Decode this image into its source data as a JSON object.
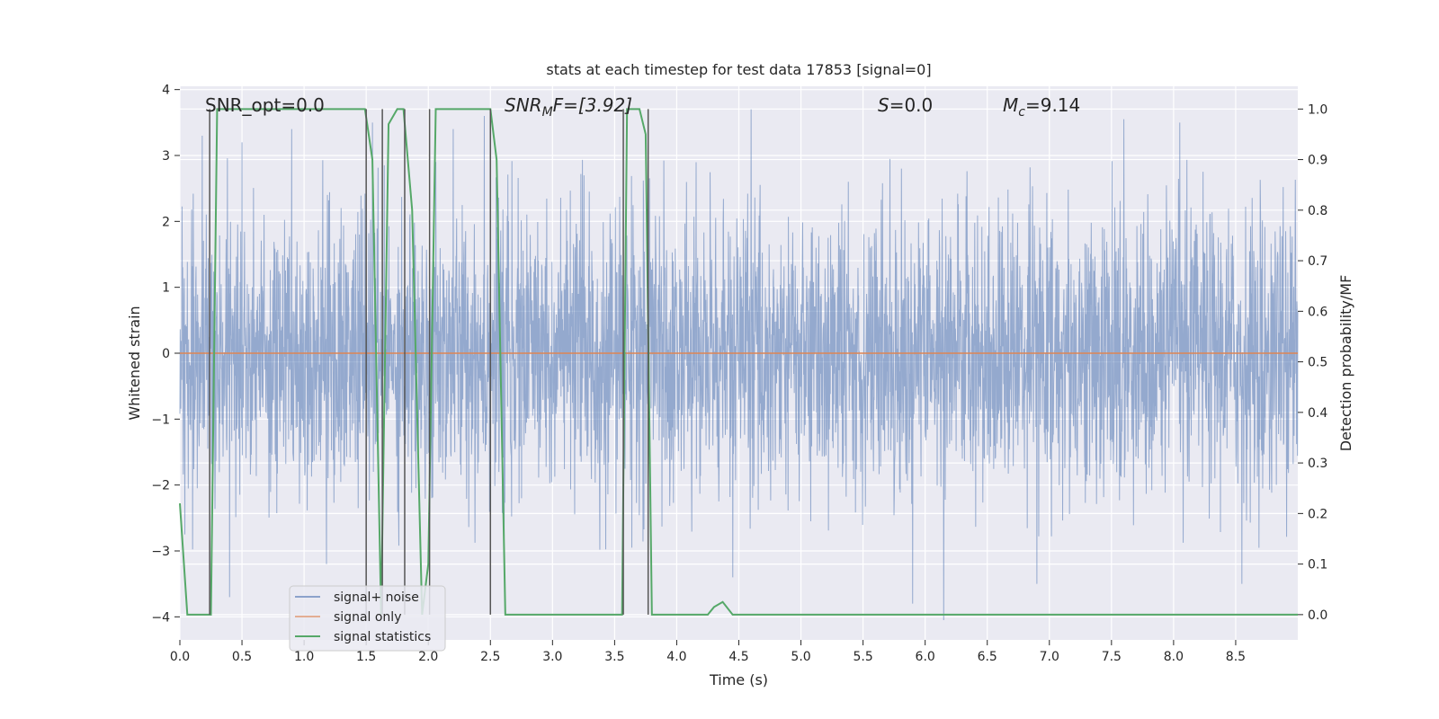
{
  "colors": {
    "plot_background": "#EAEAF2",
    "grid": "#FFFFFF",
    "noise": "#4C72B0",
    "signal_only": "#DD8452",
    "statistics": "#55A868",
    "vlines": "#555555",
    "text": "#262626"
  },
  "chart_data": {
    "type": "line",
    "title": "stats at each timestep for test data 17853 [signal=0]",
    "xlabel": "Time (s)",
    "ylabel": "Whitened strain",
    "y2label": "Detection probability/MF",
    "xlim": [
      0.0,
      9.0
    ],
    "ylim": [
      -4.35,
      4.05
    ],
    "y2lim": [
      -0.05,
      1.045
    ],
    "x_ticks": [
      "0.0",
      "0.5",
      "1.0",
      "1.5",
      "2.0",
      "2.5",
      "3.0",
      "3.5",
      "4.0",
      "4.5",
      "5.0",
      "5.5",
      "6.0",
      "6.5",
      "7.0",
      "7.5",
      "8.0",
      "8.5"
    ],
    "y_ticks": [
      "4",
      "3",
      "2",
      "1",
      "0",
      "−1",
      "−2",
      "−3",
      "−4"
    ],
    "y2_ticks": [
      "1.0",
      "0.9",
      "0.8",
      "0.7",
      "0.6",
      "0.5",
      "0.4",
      "0.3",
      "0.2",
      "0.1",
      "0.0"
    ],
    "annotations": {
      "snr_opt": "SNR_opt=0.0",
      "snr_mf_main": "SNR",
      "snr_mf_sub": "M",
      "snr_mf_suffix": "F=[3.92]",
      "s_main": "S",
      "s_suffix": "=0.0",
      "mc_main": "M",
      "mc_sub": "c",
      "mc_suffix": "=9.14"
    },
    "legend": {
      "position": "lower-left",
      "entries": [
        "signal+ noise",
        "signal only",
        "signal statistics"
      ]
    },
    "series": [
      {
        "name": "signal+ noise",
        "kind": "noise",
        "description": "whitened strain, approx. gaussian noise, std ~1.05, peaks up to ~3.5 / down to ~-4.0",
        "spikes": [
          {
            "x": 0.04,
            "y": -2.75
          },
          {
            "x": 0.18,
            "y": 3.3
          },
          {
            "x": 0.4,
            "y": -3.7
          },
          {
            "x": 0.5,
            "y": 3.2
          },
          {
            "x": 0.9,
            "y": 3.4
          },
          {
            "x": 1.18,
            "y": -3.2
          },
          {
            "x": 1.55,
            "y": 3.5
          },
          {
            "x": 2.2,
            "y": 3.4
          },
          {
            "x": 2.45,
            "y": 3.6
          },
          {
            "x": 4.45,
            "y": -3.4
          },
          {
            "x": 4.6,
            "y": 3.7
          },
          {
            "x": 5.9,
            "y": -3.8
          },
          {
            "x": 6.15,
            "y": -4.05
          },
          {
            "x": 6.9,
            "y": -3.5
          },
          {
            "x": 7.6,
            "y": 3.55
          },
          {
            "x": 8.05,
            "y": 3.5
          },
          {
            "x": 8.55,
            "y": -3.5
          }
        ]
      },
      {
        "name": "signal only",
        "kind": "line",
        "x": [
          0.0,
          9.0
        ],
        "y": [
          0.0,
          0.0
        ]
      },
      {
        "name": "signal statistics",
        "kind": "line",
        "axis": "right",
        "x": [
          0.0,
          0.06,
          0.25,
          0.3,
          0.5,
          1.0,
          1.49,
          1.55,
          1.62,
          1.68,
          1.75,
          1.8,
          1.87,
          1.95,
          2.0,
          2.06,
          2.25,
          2.5,
          2.55,
          2.62,
          3.0,
          3.5,
          3.56,
          3.6,
          3.7,
          3.75,
          3.8,
          4.0,
          4.25,
          4.3,
          4.37,
          4.45,
          5.0,
          6.0,
          7.0,
          8.0,
          9.0
        ],
        "y": [
          0.22,
          0.0,
          0.0,
          1.0,
          1.0,
          1.0,
          1.0,
          0.9,
          0.0,
          0.97,
          1.0,
          1.0,
          0.8,
          0.0,
          0.1,
          1.0,
          1.0,
          1.0,
          0.9,
          0.0,
          0.0,
          0.0,
          0.0,
          1.0,
          1.0,
          0.95,
          0.0,
          0.0,
          0.0,
          0.015,
          0.025,
          0.0,
          0.0,
          0.0,
          0.0,
          0.0,
          0.0
        ]
      }
    ],
    "vertical_lines": {
      "x": [
        0.24,
        1.5,
        1.63,
        1.81,
        2.01,
        2.5,
        3.57,
        3.77
      ],
      "y_range_right_axis": [
        0.0,
        1.0
      ]
    }
  }
}
